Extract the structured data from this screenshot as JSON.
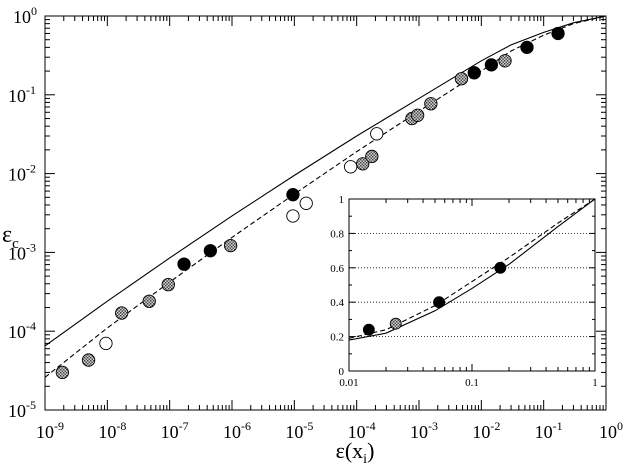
{
  "chart_data": [
    {
      "type": "scatter",
      "xlabel": "ε(x",
      "xlabel_sub": "i",
      "xlabel_close": ")",
      "ylabel": "ε",
      "ylabel_sub": "c",
      "xscale": "log",
      "yscale": "log",
      "xlim": [
        1e-09,
        1
      ],
      "ylim": [
        1e-05,
        1
      ],
      "x_ticks": [
        {
          "exp": "-9"
        },
        {
          "exp": "-8"
        },
        {
          "exp": "-7"
        },
        {
          "exp": "-6"
        },
        {
          "exp": "-5"
        },
        {
          "exp": "-4"
        },
        {
          "exp": "-3"
        },
        {
          "exp": "-2"
        },
        {
          "exp": "-1"
        },
        {
          "exp": "0"
        }
      ],
      "y_ticks": [
        {
          "exp": "-5"
        },
        {
          "exp": "-4"
        },
        {
          "exp": "-3"
        },
        {
          "exp": "-2"
        },
        {
          "exp": "-1"
        },
        {
          "exp": "0"
        }
      ],
      "tick_base": "10",
      "series": [
        {
          "marker": "filled",
          "points": [
            [
              1.7e-07,
              0.00071
            ],
            [
              4.5e-07,
              0.00105
            ],
            [
              9.5e-06,
              0.0054
            ],
            [
              0.0077,
              0.19
            ],
            [
              0.0145,
              0.24
            ],
            [
              0.054,
              0.4
            ],
            [
              0.17,
              0.6
            ]
          ]
        },
        {
          "marker": "hatched",
          "points": [
            [
              1.9e-09,
              3e-05
            ],
            [
              5e-09,
              4.3e-05
            ],
            [
              1.7e-08,
              0.00017
            ],
            [
              4.7e-08,
              0.00024
            ],
            [
              9.5e-08,
              0.00039
            ],
            [
              9.5e-07,
              0.00122
            ],
            [
              0.000125,
              0.0133
            ],
            [
              0.000175,
              0.0165
            ],
            [
              0.00077,
              0.05
            ],
            [
              0.00095,
              0.055
            ],
            [
              0.00155,
              0.077
            ],
            [
              0.0048,
              0.16
            ],
            [
              0.024,
              0.27
            ]
          ]
        },
        {
          "marker": "open",
          "points": [
            [
              9.5e-09,
              7e-05
            ],
            [
              9.5e-06,
              0.0029
            ],
            [
              1.55e-05,
              0.0042
            ],
            [
              8e-05,
              0.0122
            ],
            [
              0.00021,
              0.032
            ]
          ]
        }
      ],
      "lines": [
        {
          "style": "solid",
          "points": [
            [
              1e-09,
              6.5e-05
            ],
            [
              1e-08,
              0.00024
            ],
            [
              1e-07,
              0.00085
            ],
            [
              1e-06,
              0.0029
            ],
            [
              1e-05,
              0.0095
            ],
            [
              0.0001,
              0.03
            ],
            [
              0.001,
              0.09
            ],
            [
              0.01,
              0.27
            ],
            [
              0.03,
              0.43
            ],
            [
              0.1,
              0.62
            ],
            [
              0.3,
              0.82
            ],
            [
              1,
              1.0
            ]
          ]
        },
        {
          "style": "dashed",
          "points": [
            [
              1e-09,
              2.6e-05
            ],
            [
              1e-08,
              0.00011
            ],
            [
              1e-07,
              0.00042
            ],
            [
              1e-06,
              0.00155
            ],
            [
              1e-05,
              0.0055
            ],
            [
              0.0001,
              0.019
            ],
            [
              0.001,
              0.062
            ],
            [
              0.01,
              0.2
            ],
            [
              0.03,
              0.36
            ],
            [
              0.1,
              0.57
            ],
            [
              0.3,
              0.8
            ],
            [
              1,
              1.0
            ]
          ]
        }
      ]
    },
    {
      "type": "scatter",
      "inset": true,
      "xscale": "log",
      "yscale": "linear",
      "xlim": [
        0.01,
        1
      ],
      "ylim": [
        0,
        1
      ],
      "x_tick_labels": [
        "0.01",
        "0.1",
        "1"
      ],
      "y_tick_labels": [
        "0",
        "0.2",
        "0.4",
        "0.6",
        "0.8",
        "1"
      ],
      "grid": "horizontal dotted",
      "series": [
        {
          "marker": "filled",
          "points": [
            [
              0.0145,
              0.24
            ],
            [
              0.054,
              0.4
            ],
            [
              0.17,
              0.6
            ]
          ]
        },
        {
          "marker": "hatched",
          "points": [
            [
              0.024,
              0.275
            ]
          ]
        }
      ],
      "lines": [
        {
          "style": "solid",
          "points": [
            [
              0.01,
              0.18
            ],
            [
              0.02,
              0.22
            ],
            [
              0.05,
              0.35
            ],
            [
              0.1,
              0.48
            ],
            [
              0.2,
              0.62
            ],
            [
              0.5,
              0.84
            ],
            [
              1,
              1.0
            ]
          ]
        },
        {
          "style": "dashed",
          "points": [
            [
              0.01,
              0.19
            ],
            [
              0.02,
              0.24
            ],
            [
              0.05,
              0.38
            ],
            [
              0.1,
              0.52
            ],
            [
              0.2,
              0.66
            ],
            [
              0.5,
              0.86
            ],
            [
              1,
              1.0
            ]
          ]
        }
      ]
    }
  ]
}
